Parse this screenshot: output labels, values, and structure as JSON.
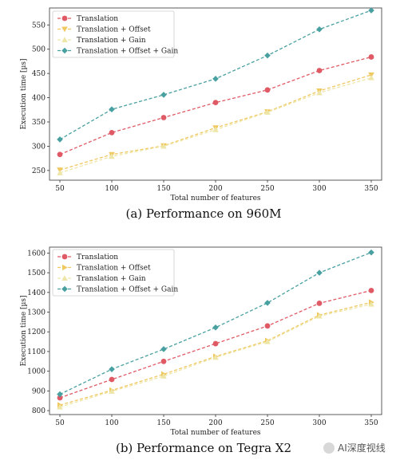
{
  "figure": {
    "caption_a": "(a)  Performance on 960M",
    "caption_b": "(b)  Performance on Tegra X2",
    "watermark": "AI深度视线"
  },
  "colors": {
    "Translation": "#e05a66",
    "Translation + Offset": "#f0c860",
    "Translation + Gain": "#eee6a8",
    "Translation + Offset + Gain": "#49a0a0"
  },
  "chart_data": [
    {
      "type": "line",
      "title": "",
      "xlabel": "Total number of features",
      "ylabel": "Execution time [µs]",
      "x": [
        50,
        100,
        150,
        200,
        250,
        300,
        350
      ],
      "xticks": [
        50,
        100,
        150,
        200,
        250,
        300,
        350
      ],
      "yticks": [
        250,
        300,
        350,
        400,
        450,
        500,
        550
      ],
      "ylim": [
        230,
        585
      ],
      "grid": false,
      "legend": "top-left",
      "series": [
        {
          "name": "Translation",
          "marker": "circle",
          "values": [
            283,
            328,
            359,
            390,
            416,
            456,
            484
          ]
        },
        {
          "name": "Translation + Offset",
          "marker": "triangle-down",
          "values": [
            251,
            283,
            301,
            338,
            371,
            414,
            447
          ]
        },
        {
          "name": "Translation + Gain",
          "marker": "triangle-up",
          "values": [
            245,
            279,
            300,
            334,
            370,
            410,
            441
          ]
        },
        {
          "name": "Translation + Offset + Gain",
          "marker": "diamond",
          "values": [
            314,
            376,
            406,
            439,
            487,
            541,
            580
          ]
        }
      ]
    },
    {
      "type": "line",
      "title": "",
      "xlabel": "Total number of features",
      "ylabel": "Execution time [µs]",
      "x": [
        50,
        100,
        150,
        200,
        250,
        300,
        350
      ],
      "xticks": [
        50,
        100,
        150,
        200,
        250,
        300,
        350
      ],
      "yticks": [
        800,
        900,
        1000,
        1100,
        1200,
        1300,
        1400,
        1500,
        1600
      ],
      "ylim": [
        780,
        1630
      ],
      "grid": false,
      "legend": "top-left",
      "series": [
        {
          "name": "Translation",
          "marker": "circle",
          "values": [
            865,
            958,
            1050,
            1140,
            1230,
            1345,
            1410
          ]
        },
        {
          "name": "Translation + Offset",
          "marker": "triangle-right",
          "values": [
            828,
            903,
            985,
            1075,
            1155,
            1285,
            1350
          ]
        },
        {
          "name": "Translation + Gain",
          "marker": "triangle-up",
          "values": [
            818,
            898,
            975,
            1070,
            1150,
            1280,
            1340
          ]
        },
        {
          "name": "Translation + Offset + Gain",
          "marker": "diamond",
          "values": [
            883,
            1010,
            1112,
            1222,
            1347,
            1500,
            1603
          ]
        }
      ]
    }
  ]
}
